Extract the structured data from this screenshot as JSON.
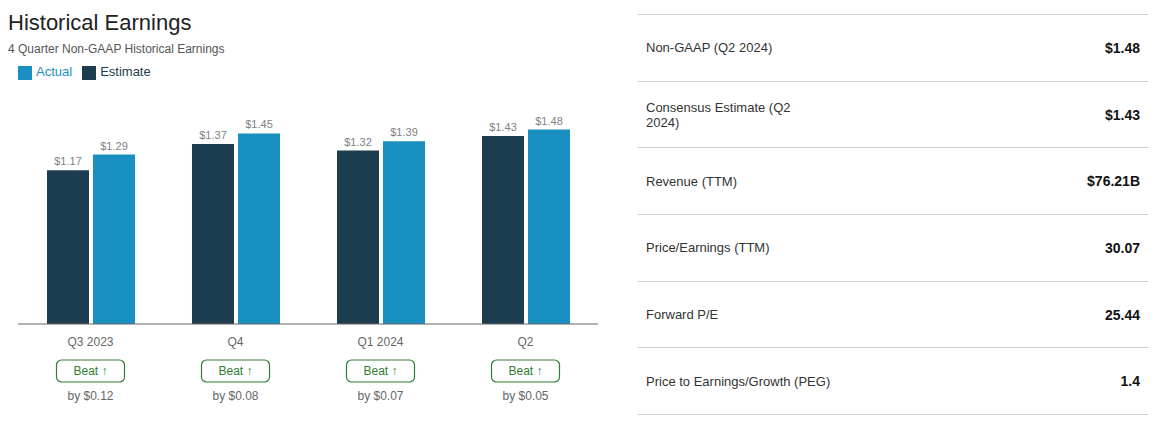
{
  "chart_data": {
    "type": "bar",
    "title": "Historical Earnings",
    "subtitle": "4 Quarter Non-GAAP Historical Earnings",
    "categories": [
      "Q3 2023",
      "Q4",
      "Q1 2024",
      "Q2"
    ],
    "series": [
      {
        "name": "Estimate",
        "color": "#1b3d4f",
        "values": [
          1.17,
          1.37,
          1.32,
          1.43
        ],
        "value_labels": [
          "$1.17",
          "$1.37",
          "$1.32",
          "$1.43"
        ]
      },
      {
        "name": "Actual",
        "color": "#1a8fc1",
        "values": [
          1.29,
          1.45,
          1.39,
          1.48
        ],
        "value_labels": [
          "$1.29",
          "$1.45",
          "$1.39",
          "$1.48"
        ]
      }
    ],
    "ylim": [
      0,
      1.72
    ],
    "grid": false,
    "legend": "upper left",
    "data_labels": true,
    "tick_labels": "x",
    "annotations": [
      {
        "text": "Beat ↑",
        "detail": "by $0.12",
        "color": "#2e7d32"
      },
      {
        "text": "Beat ↑",
        "detail": "by $0.08",
        "color": "#2e7d32"
      },
      {
        "text": "Beat ↑",
        "detail": "by $0.07",
        "color": "#2e7d32"
      },
      {
        "text": "Beat ↑",
        "detail": "by $0.05",
        "color": "#2e7d32"
      }
    ],
    "table": [
      {
        "label": "Non-GAAP (Q2 2024)",
        "value": "$1.48"
      },
      {
        "label": "Consensus Estimate (Q2\n2024)",
        "value": "$1.43"
      },
      {
        "label": "Revenue (TTM)",
        "value": "$76.21B"
      },
      {
        "label": "Price/Earnings (TTM)",
        "value": "30.07"
      },
      {
        "label": "Forward P/E",
        "value": "25.44"
      },
      {
        "label": "Price to Earnings/Growth (PEG)",
        "value": "1.4"
      }
    ]
  }
}
